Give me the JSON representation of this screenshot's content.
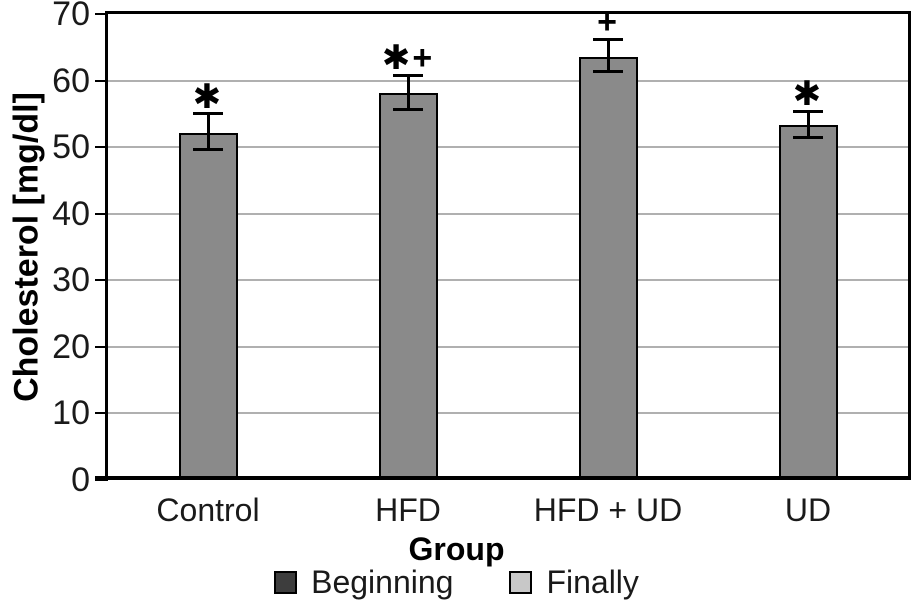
{
  "chart_data": {
    "type": "bar",
    "xlabel": "Group",
    "ylabel": "Cholesterol [mg/dl]",
    "ylim": [
      0,
      70
    ],
    "ytick_step": 10,
    "grid": true,
    "legend_position": "bottom",
    "categories": [
      "Control",
      "HFD",
      "HFD + UD",
      "UD"
    ],
    "values": [
      52.2,
      58.1,
      63.5,
      53.3
    ],
    "error_plus": [
      2.8,
      2.7,
      2.7,
      2.1
    ],
    "error_minus": [
      2.5,
      2.4,
      2.2,
      1.8
    ],
    "annotations": [
      "*",
      "*+",
      "+",
      "*"
    ],
    "legend": [
      {
        "label": "Beginning",
        "swatch": "#3d3d3d"
      },
      {
        "label": "Finally",
        "swatch": "#c8c8c8"
      }
    ],
    "colors": {
      "bar_fill": "#8a8a8a",
      "bar_border": "#000000",
      "grid": "#b0b0b0",
      "axis": "#000000",
      "text": "#1a1a1a"
    }
  }
}
